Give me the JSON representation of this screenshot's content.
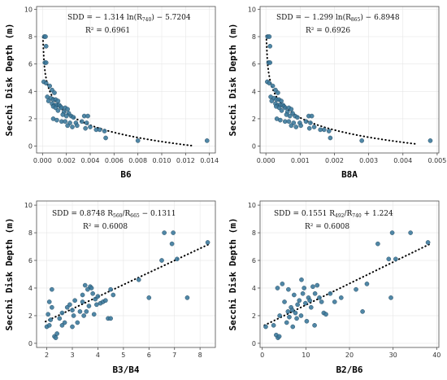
{
  "figure": {
    "shared_ylabel": "Secchi Disk Depth (m)",
    "point_color": "#3d7a9c",
    "fit_color": "#000000"
  },
  "chart_data": [
    {
      "type": "scatter",
      "xlabel": "B6",
      "ylabel": "Secchi Disk Depth (m)",
      "equation": {
        "lead": "SDD = − 1.314 ln(R",
        "sub": "740",
        "tail": ") − 5.7204"
      },
      "r2": "R² = 0.6961",
      "xlim": [
        -0.0005,
        0.0145
      ],
      "ylim": [
        -0.5,
        10.2
      ],
      "xticks": [
        0.0,
        0.002,
        0.004,
        0.006,
        0.008,
        0.01,
        0.012,
        0.014
      ],
      "xtick_labels": [
        "0.000",
        "0.002",
        "0.004",
        "0.006",
        "0.008",
        "0.010",
        "0.012",
        "0.014"
      ],
      "yticks": [
        0,
        2,
        4,
        6,
        8,
        10
      ],
      "ytick_labels": [
        "0",
        "2",
        "4",
        "6",
        "8",
        "10"
      ],
      "fit": {
        "kind": "log",
        "a": -1.314,
        "b": -5.7204,
        "x_from": 3e-05,
        "x_to": 0.0125
      },
      "points": [
        [
          0.00015,
          8.0
        ],
        [
          0.00025,
          8.0
        ],
        [
          0.0003,
          7.3
        ],
        [
          0.0002,
          6.1
        ],
        [
          0.0003,
          6.1
        ],
        [
          0.0001,
          4.7
        ],
        [
          0.0003,
          4.6
        ],
        [
          0.0006,
          4.4
        ],
        [
          0.0008,
          4.1
        ],
        [
          0.001,
          3.9
        ],
        [
          0.0004,
          3.6
        ],
        [
          0.0007,
          3.5
        ],
        [
          0.0009,
          3.4
        ],
        [
          0.0011,
          3.4
        ],
        [
          0.0013,
          3.3
        ],
        [
          0.0005,
          3.3
        ],
        [
          0.0008,
          3.1
        ],
        [
          0.001,
          3.0
        ],
        [
          0.0012,
          3.0
        ],
        [
          0.0014,
          3.0
        ],
        [
          0.0009,
          2.9
        ],
        [
          0.0015,
          2.9
        ],
        [
          0.0011,
          2.8
        ],
        [
          0.0016,
          2.8
        ],
        [
          0.0019,
          2.8
        ],
        [
          0.0021,
          2.7
        ],
        [
          0.0013,
          2.6
        ],
        [
          0.0018,
          2.5
        ],
        [
          0.0022,
          2.4
        ],
        [
          0.0017,
          2.3
        ],
        [
          0.002,
          2.2
        ],
        [
          0.0024,
          2.2
        ],
        [
          0.0026,
          2.1
        ],
        [
          0.0035,
          2.2
        ],
        [
          0.0038,
          2.2
        ],
        [
          0.0009,
          2.0
        ],
        [
          0.0012,
          1.9
        ],
        [
          0.0016,
          1.8
        ],
        [
          0.0019,
          1.8
        ],
        [
          0.0023,
          1.7
        ],
        [
          0.0028,
          1.7
        ],
        [
          0.0033,
          1.8
        ],
        [
          0.0037,
          1.7
        ],
        [
          0.0036,
          1.3
        ],
        [
          0.0021,
          1.5
        ],
        [
          0.0025,
          1.4
        ],
        [
          0.0029,
          1.5
        ],
        [
          0.004,
          1.4
        ],
        [
          0.0045,
          1.2
        ],
        [
          0.0048,
          1.2
        ],
        [
          0.0052,
          1.1
        ],
        [
          0.0053,
          0.6
        ],
        [
          0.008,
          0.4
        ],
        [
          0.0138,
          0.4
        ]
      ]
    },
    {
      "type": "scatter",
      "xlabel": "B8A",
      "ylabel": "",
      "equation": {
        "lead": "SDD = − 1.299 ln(R",
        "sub": "865",
        "tail": ") − 6.8948"
      },
      "r2": "R² = 0.6926",
      "xlim": [
        -0.00017,
        0.00505
      ],
      "ylim": [
        -0.5,
        10.2
      ],
      "xticks": [
        0.0,
        0.001,
        0.002,
        0.003,
        0.004,
        0.005
      ],
      "xtick_labels": [
        "0.000",
        "0.001",
        "0.002",
        "0.003",
        "0.004",
        "0.005"
      ],
      "yticks": [
        0,
        2,
        4,
        6,
        8,
        10
      ],
      "ytick_labels": [
        "0",
        "2",
        "4",
        "6",
        "8",
        "10"
      ],
      "fit": {
        "kind": "log",
        "a": -1.299,
        "b": -6.8948,
        "x_from": 1e-05,
        "x_to": 0.0044
      },
      "points": [
        [
          5e-05,
          8.0
        ],
        [
          0.0001,
          8.0
        ],
        [
          0.00012,
          7.3
        ],
        [
          8e-05,
          6.1
        ],
        [
          0.00012,
          6.1
        ],
        [
          4e-05,
          4.7
        ],
        [
          0.0001,
          4.6
        ],
        [
          0.0002,
          4.4
        ],
        [
          0.00028,
          4.1
        ],
        [
          0.00035,
          3.9
        ],
        [
          0.00014,
          3.6
        ],
        [
          0.00024,
          3.5
        ],
        [
          0.00031,
          3.4
        ],
        [
          0.00038,
          3.4
        ],
        [
          0.00045,
          3.3
        ],
        [
          0.00017,
          3.3
        ],
        [
          0.00028,
          3.1
        ],
        [
          0.00035,
          3.0
        ],
        [
          0.00042,
          3.0
        ],
        [
          0.0005,
          3.0
        ],
        [
          0.0003,
          2.9
        ],
        [
          0.00053,
          2.9
        ],
        [
          0.00039,
          2.8
        ],
        [
          0.00057,
          2.8
        ],
        [
          0.00067,
          2.8
        ],
        [
          0.00074,
          2.7
        ],
        [
          0.00046,
          2.6
        ],
        [
          0.00063,
          2.5
        ],
        [
          0.00078,
          2.4
        ],
        [
          0.0006,
          2.3
        ],
        [
          0.0007,
          2.2
        ],
        [
          0.00085,
          2.2
        ],
        [
          0.00092,
          2.1
        ],
        [
          0.00125,
          2.2
        ],
        [
          0.00134,
          2.2
        ],
        [
          0.00032,
          2.0
        ],
        [
          0.00042,
          1.9
        ],
        [
          0.00056,
          1.8
        ],
        [
          0.00067,
          1.8
        ],
        [
          0.00081,
          1.7
        ],
        [
          0.00099,
          1.7
        ],
        [
          0.00117,
          1.8
        ],
        [
          0.0013,
          1.7
        ],
        [
          0.00127,
          1.3
        ],
        [
          0.00074,
          1.5
        ],
        [
          0.00088,
          1.4
        ],
        [
          0.00102,
          1.5
        ],
        [
          0.00141,
          1.4
        ],
        [
          0.00159,
          1.2
        ],
        [
          0.0017,
          1.2
        ],
        [
          0.00184,
          1.1
        ],
        [
          0.00188,
          0.6
        ],
        [
          0.0028,
          0.4
        ],
        [
          0.0048,
          0.4
        ]
      ]
    },
    {
      "type": "scatter",
      "xlabel": "B3/B4",
      "ylabel": "Secchi Disk Depth (m)",
      "equation": {
        "lead": "SDD = 0.8748 R",
        "sub": "560",
        "mid": "/R",
        "sub2": "665",
        "tail": " − 0.1311"
      },
      "r2": "R² = 0.6008",
      "xlim": [
        1.6,
        8.6
      ],
      "ylim": [
        -0.3,
        10.3
      ],
      "xticks": [
        2,
        3,
        4,
        5,
        6,
        7,
        8
      ],
      "xtick_labels": [
        "2",
        "3",
        "4",
        "5",
        "6",
        "7",
        "8"
      ],
      "yticks": [
        0,
        2,
        4,
        6,
        8,
        10
      ],
      "ytick_labels": [
        "0",
        "2",
        "4",
        "6",
        "8",
        "10"
      ],
      "fit": {
        "kind": "linear",
        "m": 0.8748,
        "c": -0.1311,
        "x_from": 1.95,
        "x_to": 8.35
      },
      "points": [
        [
          2.0,
          1.2
        ],
        [
          2.1,
          1.3
        ],
        [
          2.05,
          2.1
        ],
        [
          2.15,
          1.7
        ],
        [
          2.1,
          3.0
        ],
        [
          2.2,
          3.9
        ],
        [
          2.3,
          0.5
        ],
        [
          2.35,
          0.4
        ],
        [
          2.4,
          0.7
        ],
        [
          2.5,
          1.8
        ],
        [
          2.6,
          2.2
        ],
        [
          2.7,
          1.5
        ],
        [
          2.8,
          2.6
        ],
        [
          2.9,
          2.8
        ],
        [
          3.0,
          2.4
        ],
        [
          3.05,
          2.0
        ],
        [
          3.1,
          3.1
        ],
        [
          3.2,
          1.5
        ],
        [
          3.3,
          2.3
        ],
        [
          3.4,
          3.0
        ],
        [
          3.4,
          3.5
        ],
        [
          3.5,
          4.2
        ],
        [
          3.6,
          3.9
        ],
        [
          3.7,
          4.1
        ],
        [
          3.75,
          4.0
        ],
        [
          3.8,
          3.6
        ],
        [
          3.9,
          3.2
        ],
        [
          3.95,
          2.8
        ],
        [
          3.55,
          2.3
        ],
        [
          3.65,
          2.7
        ],
        [
          3.45,
          2.0
        ],
        [
          3.85,
          2.1
        ],
        [
          4.0,
          3.4
        ],
        [
          4.1,
          2.9
        ],
        [
          4.2,
          3.0
        ],
        [
          4.3,
          3.1
        ],
        [
          4.4,
          1.8
        ],
        [
          4.5,
          1.8
        ],
        [
          4.5,
          3.9
        ],
        [
          4.6,
          3.5
        ],
        [
          5.6,
          4.6
        ],
        [
          6.0,
          3.3
        ],
        [
          6.5,
          6.0
        ],
        [
          6.6,
          8.0
        ],
        [
          6.9,
          7.2
        ],
        [
          6.95,
          8.0
        ],
        [
          7.1,
          6.1
        ],
        [
          7.5,
          3.3
        ],
        [
          8.3,
          7.3
        ],
        [
          2.2,
          2.6
        ],
        [
          2.6,
          1.3
        ],
        [
          3.0,
          1.2
        ]
      ]
    },
    {
      "type": "scatter",
      "xlabel": "B2/B6",
      "ylabel": "",
      "equation": {
        "lead": "SDD = 0.1551 R",
        "sub": "492",
        "mid": "/R",
        "sub2": "740",
        "tail": " + 1.224"
      },
      "r2": "R² = 0.6008",
      "xlim": [
        -0.5,
        40.5
      ],
      "ylim": [
        -0.3,
        10.3
      ],
      "xticks": [
        0,
        10,
        20,
        30,
        40
      ],
      "xtick_labels": [
        "0",
        "10",
        "20",
        "30",
        "40"
      ],
      "yticks": [
        0,
        2,
        4,
        6,
        8,
        10
      ],
      "ytick_labels": [
        "0",
        "2",
        "4",
        "6",
        "8",
        "10"
      ],
      "fit": {
        "kind": "linear",
        "m": 0.1551,
        "c": 1.224,
        "x_from": 0.5,
        "x_to": 38.5
      },
      "points": [
        [
          0.8,
          1.2
        ],
        [
          2.6,
          1.3
        ],
        [
          3.2,
          0.6
        ],
        [
          3.6,
          0.4
        ],
        [
          3.9,
          0.5
        ],
        [
          4.0,
          2.0
        ],
        [
          3.5,
          4.0
        ],
        [
          4.6,
          4.3
        ],
        [
          5.1,
          3.0
        ],
        [
          5.6,
          1.5
        ],
        [
          5.9,
          2.3
        ],
        [
          6.2,
          1.9
        ],
        [
          6.6,
          2.6
        ],
        [
          6.9,
          2.4
        ],
        [
          7.3,
          3.5
        ],
        [
          7.6,
          2.2
        ],
        [
          7.9,
          1.8
        ],
        [
          8.1,
          2.8
        ],
        [
          8.5,
          3.1
        ],
        [
          8.9,
          2.0
        ],
        [
          9.3,
          3.6
        ],
        [
          9.6,
          4.0
        ],
        [
          9.9,
          2.9
        ],
        [
          10.2,
          1.6
        ],
        [
          10.6,
          3.3
        ],
        [
          10.9,
          3.1
        ],
        [
          11.2,
          2.6
        ],
        [
          11.6,
          4.1
        ],
        [
          12.1,
          3.6
        ],
        [
          12.6,
          4.2
        ],
        [
          13.1,
          3.3
        ],
        [
          13.6,
          3.0
        ],
        [
          14.1,
          2.2
        ],
        [
          14.6,
          2.1
        ],
        [
          15.6,
          3.6
        ],
        [
          16.6,
          3.0
        ],
        [
          18.1,
          3.3
        ],
        [
          21.5,
          3.9
        ],
        [
          23.0,
          2.3
        ],
        [
          24.0,
          4.3
        ],
        [
          26.5,
          7.2
        ],
        [
          29.0,
          6.1
        ],
        [
          29.5,
          3.3
        ],
        [
          29.8,
          8.0
        ],
        [
          30.6,
          6.1
        ],
        [
          34.0,
          8.0
        ],
        [
          38.0,
          7.3
        ],
        [
          7.0,
          1.2
        ],
        [
          12.0,
          1.3
        ],
        [
          9.0,
          4.6
        ],
        [
          6.0,
          3.9
        ]
      ]
    }
  ]
}
